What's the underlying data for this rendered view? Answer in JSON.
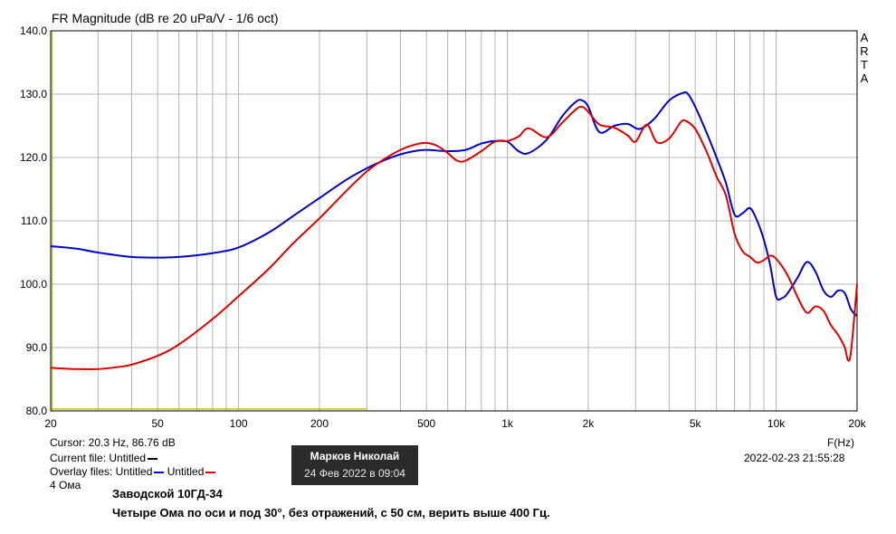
{
  "title": "FR Magnitude (dB re 20 uPa/V - 1/6 oct)",
  "brand": [
    "A",
    "R",
    "T",
    "A"
  ],
  "footer": {
    "cursor": "Cursor: 20.3 Hz, 86.76 dB",
    "current_file": "Current file: Untitled",
    "overlay_prefix": "Overlay files: Untitled",
    "overlay_second": "Untitled",
    "impedance": "4 Ома",
    "fhz": "F(Hz)",
    "datetime": "2022-02-23   21:55:28"
  },
  "badge": {
    "name": "Марков Николай",
    "date": "24 Фев 2022 в 09:04"
  },
  "captions": {
    "line1": "Заводской 10ГД-34",
    "line2": "Четыре Ома по оси и под 30°, без отражений, с 50 см, верить выше 400 Гц."
  },
  "chart_data": {
    "type": "line",
    "x_scale": "log",
    "xlim": [
      20,
      20000
    ],
    "ylim": [
      80,
      140
    ],
    "grid": true,
    "x_ticks": [
      20,
      50,
      100,
      200,
      500,
      1000,
      2000,
      5000,
      10000,
      20000
    ],
    "x_tick_labels": [
      "20",
      "50",
      "100",
      "200",
      "500",
      "1k",
      "2k",
      "5k",
      "10k",
      "20k"
    ],
    "y_ticks": [
      80,
      90,
      100,
      110,
      120,
      130,
      140
    ],
    "y_tick_labels": [
      "80.0",
      "90.0",
      "100.0",
      "110.0",
      "120.0",
      "130.0",
      "140.0"
    ],
    "colors": {
      "current": "#000000",
      "blue": "#0000c8",
      "red": "#dd0000",
      "marker": "#c8c800",
      "grid": "#b4b4b4",
      "frame": "#000000"
    },
    "series": [
      {
        "color": "#0000c8",
        "x": [
          20,
          25,
          30,
          40,
          50,
          60,
          80,
          100,
          130,
          160,
          200,
          250,
          300,
          350,
          400,
          450,
          500,
          600,
          700,
          800,
          900,
          1000,
          1100,
          1200,
          1400,
          1600,
          1800,
          1900,
          2000,
          2200,
          2500,
          2800,
          3100,
          3500,
          4000,
          4500,
          4700,
          5000,
          5500,
          6000,
          6500,
          7000,
          7500,
          8000,
          8500,
          9000,
          9500,
          10000,
          10500,
          11000,
          12000,
          13000,
          14000,
          15000,
          16000,
          17000,
          18000,
          19000,
          20000
        ],
        "y": [
          106,
          105.6,
          105,
          104.3,
          104.2,
          104.3,
          104.9,
          105.8,
          108.2,
          110.8,
          113.6,
          116.4,
          118.3,
          119.6,
          120.5,
          121,
          121.2,
          121,
          121.2,
          122.2,
          122.6,
          122.5,
          121,
          120.7,
          122.8,
          126.5,
          128.8,
          129,
          128,
          124,
          125,
          125.3,
          124.5,
          126,
          129,
          130.2,
          130,
          128,
          124,
          120,
          116,
          111,
          111.2,
          112,
          110,
          107,
          103,
          98,
          97.8,
          98.5,
          101,
          103.5,
          102,
          99,
          98,
          99,
          98.6,
          96,
          95
        ]
      },
      {
        "color": "#dd0000",
        "x": [
          20,
          25,
          30,
          35,
          40,
          50,
          60,
          80,
          100,
          130,
          160,
          200,
          250,
          300,
          350,
          400,
          450,
          500,
          550,
          600,
          650,
          700,
          800,
          900,
          1000,
          1100,
          1200,
          1400,
          1600,
          1800,
          1900,
          2000,
          2200,
          2500,
          2800,
          3000,
          3300,
          3600,
          4000,
          4400,
          4600,
          5000,
          5500,
          6000,
          6500,
          7000,
          7500,
          8000,
          8500,
          9000,
          9500,
          10000,
          11000,
          12000,
          13000,
          14000,
          15000,
          16000,
          17000,
          18000,
          18500,
          19000,
          20000
        ],
        "y": [
          86.8,
          86.6,
          86.6,
          86.9,
          87.3,
          88.7,
          90.5,
          94.5,
          98.1,
          102.5,
          106.5,
          110.4,
          114.6,
          117.8,
          119.8,
          121.2,
          122,
          122.3,
          121.8,
          120.7,
          119.5,
          119.5,
          121,
          122.5,
          122.6,
          123.3,
          124.6,
          123.2,
          125.5,
          127.6,
          128,
          127.2,
          125.2,
          124.7,
          123.5,
          122.5,
          125.2,
          122.4,
          123,
          125.5,
          125.8,
          124.5,
          121,
          117,
          114,
          108,
          105.2,
          104.3,
          103.4,
          103.8,
          104.5,
          104,
          101.5,
          98,
          95.5,
          96.5,
          95.8,
          93.5,
          92,
          90,
          88,
          89.5,
          100
        ]
      }
    ]
  }
}
